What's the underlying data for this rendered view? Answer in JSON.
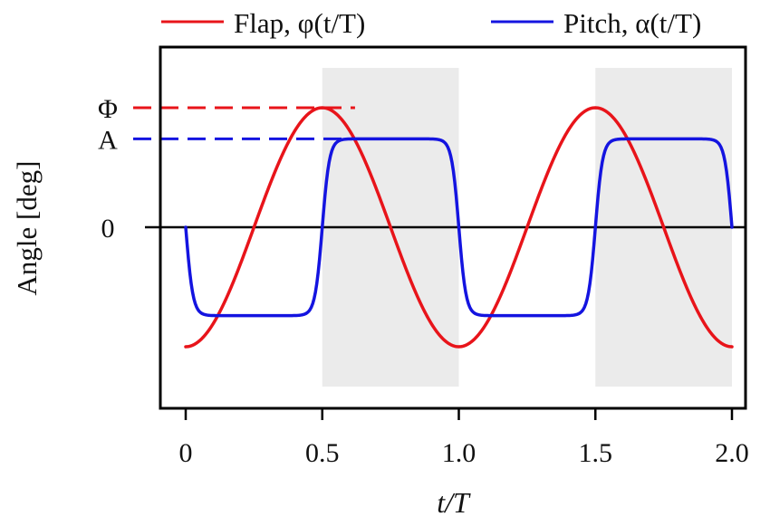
{
  "chart_data": {
    "type": "line",
    "title": "",
    "xlabel": "t/T",
    "ylabel": "Angle [deg]",
    "xlim": [
      0,
      2
    ],
    "x_ticks": [
      "0",
      "0.5",
      "1.0",
      "1.5",
      "2.0"
    ],
    "x_tick_values": [
      0,
      0.5,
      1.0,
      1.5,
      2.0
    ],
    "y_ticks": [
      {
        "label": "Φ",
        "value": 1
      },
      {
        "label": "A",
        "value": 0.74
      },
      {
        "label": "0",
        "value": 0
      }
    ],
    "grid": false,
    "legend_position": "top",
    "shaded_intervals": [
      [
        0.5,
        1.0
      ],
      [
        1.5,
        2.0
      ]
    ],
    "shade_color": "#ebebeb",
    "series": [
      {
        "name": "Flap, φ(t/T)",
        "color": "#e8141a",
        "model": "flap",
        "amplitude": 1,
        "x": [
          0,
          0.125,
          0.25,
          0.375,
          0.5,
          0.625,
          0.75,
          0.875,
          1.0,
          1.125,
          1.25,
          1.375,
          1.5,
          1.625,
          1.75,
          1.875,
          2.0
        ],
        "values": [
          -1,
          -0.71,
          0,
          0.71,
          1,
          0.71,
          0,
          -0.71,
          -1,
          -0.71,
          0,
          0.71,
          1,
          0.71,
          0,
          -0.71,
          -1
        ]
      },
      {
        "name": "Pitch, α(t/T)",
        "color": "#1414e0",
        "model": "pitch",
        "amplitude": 0.74,
        "x": [
          0,
          0.125,
          0.25,
          0.375,
          0.5,
          0.625,
          0.75,
          0.875,
          1.0,
          1.125,
          1.25,
          1.375,
          1.5,
          1.625,
          1.75,
          1.875,
          2.0
        ],
        "values": [
          0,
          -0.71,
          -0.74,
          -0.71,
          0,
          0.71,
          0.74,
          0.71,
          0,
          -0.71,
          -0.74,
          -0.71,
          0,
          0.71,
          0.74,
          0.71,
          0
        ]
      }
    ],
    "reference_lines": [
      {
        "series": 0,
        "value": 1,
        "x_end": 0.62
      },
      {
        "series": 1,
        "value": 0.74,
        "x_end": 0.62
      }
    ]
  }
}
